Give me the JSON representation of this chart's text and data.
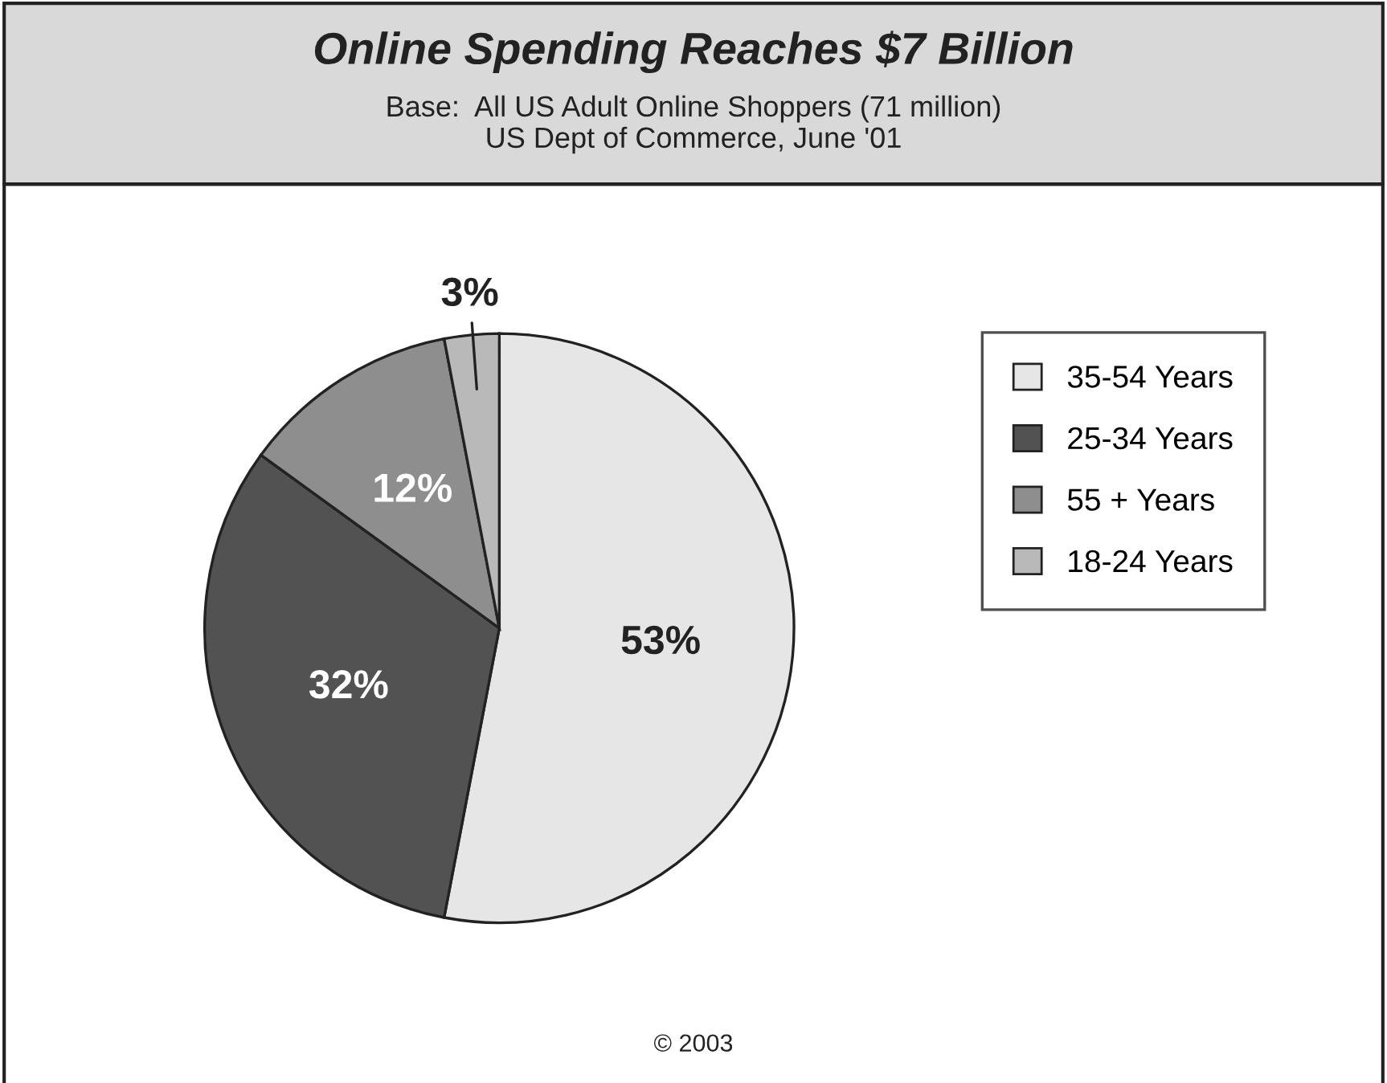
{
  "chart_data": {
    "type": "pie",
    "title": "Online Spending Reaches $7 Billion",
    "subtitle": "Base:  All US Adult Online Shoppers (71 million)\nUS Dept of Commerce, June '01",
    "categories": [
      "35-54 Years",
      "25-34 Years",
      "55 + Years",
      "18-24 Years"
    ],
    "values": [
      53,
      32,
      12,
      3
    ],
    "colors": [
      "#e6e6e6",
      "#525252",
      "#8e8e8e",
      "#b9b9b9"
    ],
    "value_labels": [
      "53%",
      "32%",
      "12%",
      "3%"
    ],
    "legend": "right",
    "annotations": [
      "© 2003"
    ]
  }
}
